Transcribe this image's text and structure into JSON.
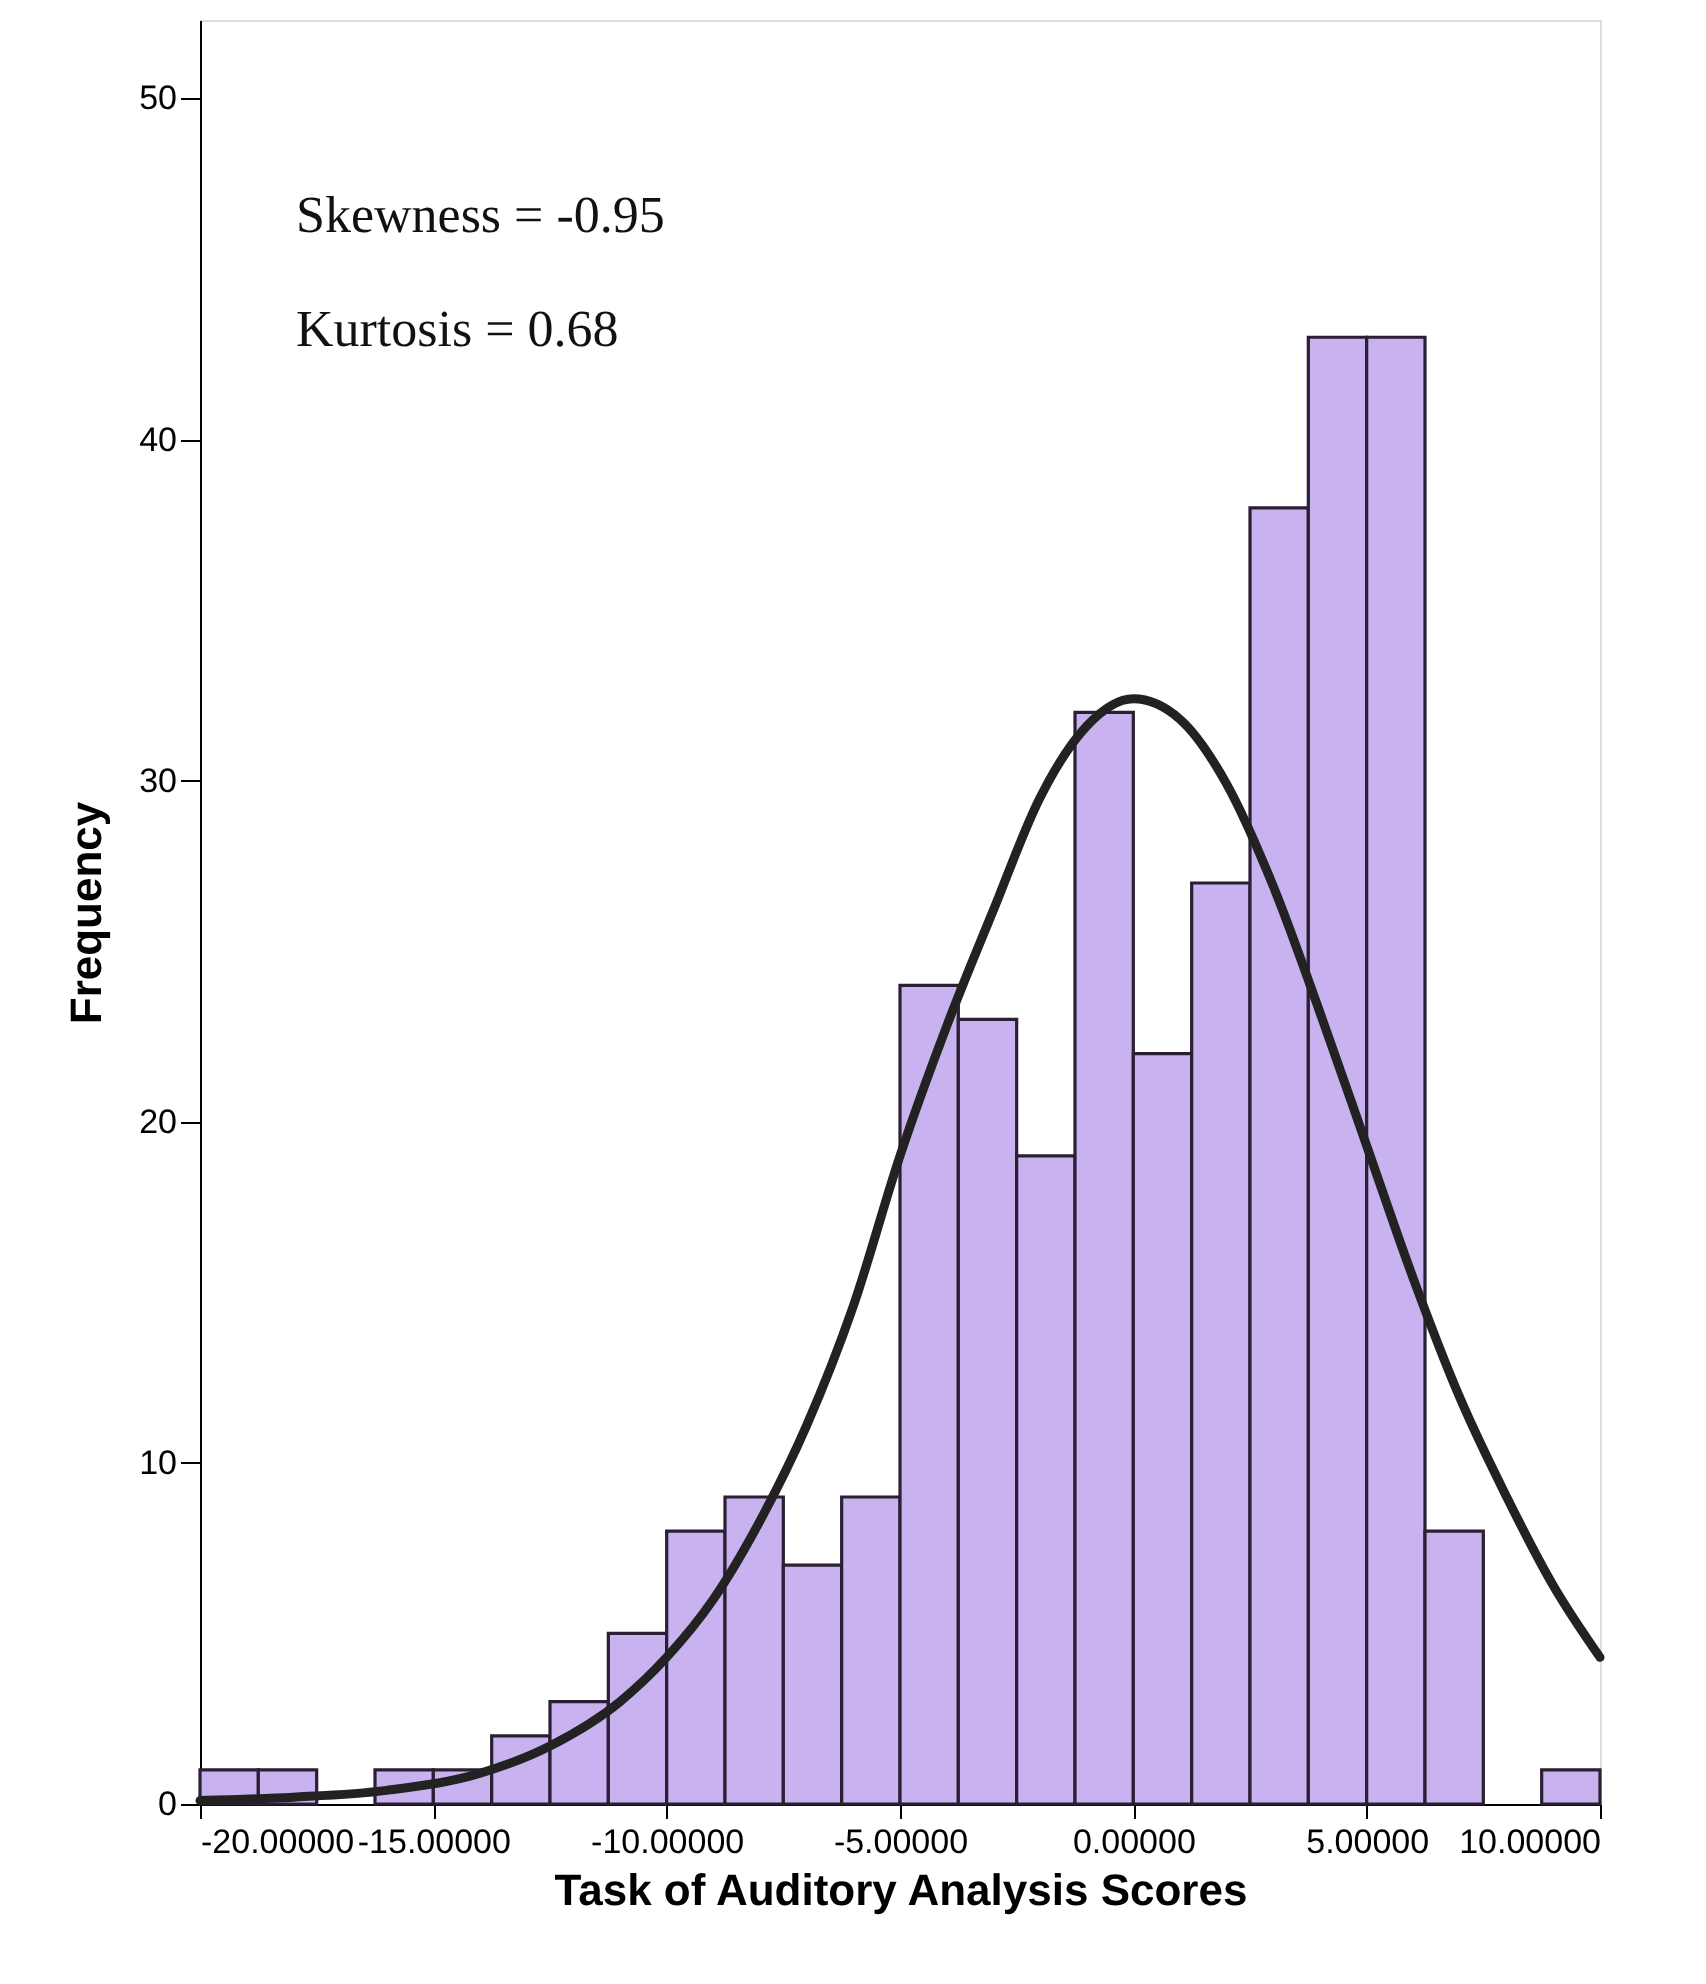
{
  "chart_data": {
    "type": "histogram",
    "xlabel": "Task of Auditory Analysis Scores",
    "ylabel": "Frequency",
    "annotations": [
      "Skewness = -0.95",
      "Kurtosis = 0.68"
    ],
    "bins": [
      -20,
      -18.75,
      -17.5,
      -16.25,
      -15,
      -13.75,
      -12.5,
      -11.25,
      -10,
      -8.75,
      -7.5,
      -6.25,
      -5,
      -3.75,
      -2.5,
      -1.25,
      0,
      1.25,
      2.5,
      3.75,
      5,
      6.25,
      7.5,
      8.75,
      10
    ],
    "values": [
      1,
      1,
      0,
      1,
      1,
      2,
      3,
      5,
      8,
      9,
      7,
      9,
      24,
      23,
      19,
      32,
      22,
      27,
      38,
      43,
      43,
      8,
      0,
      1
    ],
    "color": "#c8b2ef",
    "series": [
      {
        "type": "line",
        "color": "#222222",
        "x": [
          -20,
          -18,
          -16,
          -14,
          -12.5,
          -11,
          -10,
          -9,
          -8,
          -7,
          -6,
          -5,
          -4,
          -3,
          -2,
          -1,
          0,
          1,
          2,
          3,
          4,
          5,
          6,
          7,
          8,
          9,
          10
        ],
        "values": [
          0.1,
          0.2,
          0.4,
          0.9,
          1.7,
          3.0,
          4.3,
          6.0,
          8.3,
          11.1,
          14.6,
          19.0,
          22.8,
          26.2,
          29.5,
          31.6,
          32.4,
          31.8,
          29.9,
          26.9,
          23.2,
          19.3,
          15.4,
          11.9,
          9.0,
          6.4,
          4.3
        ]
      }
    ],
    "xlim": [
      -20,
      10
    ],
    "xticks": [
      {
        "value": -20,
        "label": "-20.00000"
      },
      {
        "value": -15,
        "label": "-15.00000"
      },
      {
        "value": -10,
        "label": "-10.00000"
      },
      {
        "value": -5,
        "label": "-5.00000"
      },
      {
        "value": 0,
        "label": "0.00000"
      },
      {
        "value": 5,
        "label": "5.00000"
      },
      {
        "value": 10,
        "label": "10.00000"
      }
    ],
    "ylim": [
      0,
      52.3
    ],
    "yticks": [
      0,
      10,
      20,
      30,
      40,
      50
    ],
    "grid": false
  }
}
